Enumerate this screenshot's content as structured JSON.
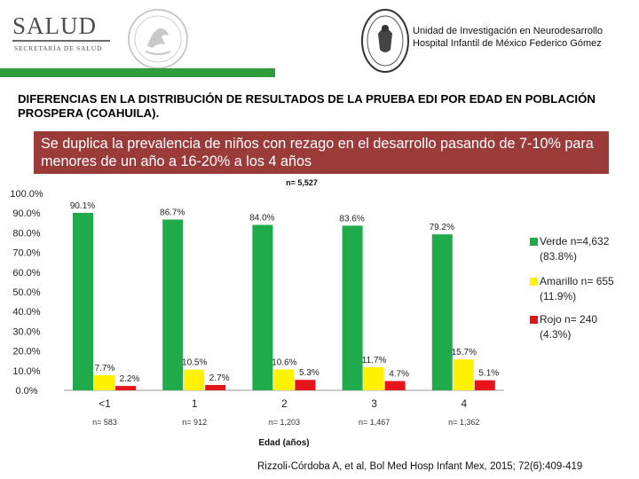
{
  "header": {
    "logo_text": "SALUD",
    "logo_subtitle": "SECRETARÍA DE SALUD",
    "institute_line1": "Unidad de Investigación en Neurodesarrollo",
    "institute_line2": "Hospital Infantil de México Federico Gómez",
    "bar_color": "#2f9b3d"
  },
  "title": "DIFERENCIAS EN LA DISTRIBUCIÓN DE RESULTADOS DE LA PRUEBA EDI POR EDAD EN POBLACIÓN PROSPERA (COAHUILA).",
  "banner": {
    "text": "Se duplica la prevalencia de niños con rezago en el desarrollo pasando de 7-10% para menores de un año a 16-20% a los 4 años",
    "color": "#9a3b3a"
  },
  "chart_data": {
    "type": "bar",
    "title": "n= 5,527",
    "xlabel": "Edad (años)",
    "ylabel": "",
    "ylim": [
      0,
      100
    ],
    "yticks": [
      "0.0%",
      "10.0%",
      "20.0%",
      "30.0%",
      "40.0%",
      "50.0%",
      "60.0%",
      "70.0%",
      "80.0%",
      "90.0%",
      "100.0%"
    ],
    "categories": [
      "<1",
      "1",
      "2",
      "3",
      "4"
    ],
    "group_n": [
      "n= 583",
      "n= 912",
      "n= 1,203",
      "n= 1,467",
      "n= 1,362"
    ],
    "series": [
      {
        "name": "Verde",
        "legend_line1": "Verde n=4,632",
        "legend_line2": "(83.8%)",
        "color": "#1fab4a",
        "values": [
          90.1,
          86.7,
          84.0,
          83.6,
          79.2
        ],
        "labels": [
          "90.1%",
          "86.7%",
          "84.0%",
          "83.6%",
          "79.2%"
        ]
      },
      {
        "name": "Amarillo",
        "legend_line1": "Amarillo n= 655",
        "legend_line2": "(11.9%)",
        "color": "#fff200",
        "values": [
          7.7,
          10.5,
          10.6,
          11.7,
          15.7
        ],
        "labels": [
          "7.7%",
          "10.5%",
          "10.6%",
          "11.7%",
          "15.7%"
        ]
      },
      {
        "name": "Rojo",
        "legend_line1": "Rojo n= 240",
        "legend_line2": "(4.3%)",
        "color": "#e8141c",
        "values": [
          2.2,
          2.7,
          5.3,
          4.7,
          5.1
        ],
        "labels": [
          "2.2%",
          "2.7%",
          "5.3%",
          "4.7%",
          "5.1%"
        ]
      }
    ],
    "legend_position": "right"
  },
  "citation": "Rizzoli-Córdoba A, et al, Bol Med Hosp Infant Mex, 2015; 72(6):409-419",
  "icons": {
    "left_seal": "mexican-coat-of-arms-icon",
    "right_seal": "hospital-seal-icon"
  }
}
